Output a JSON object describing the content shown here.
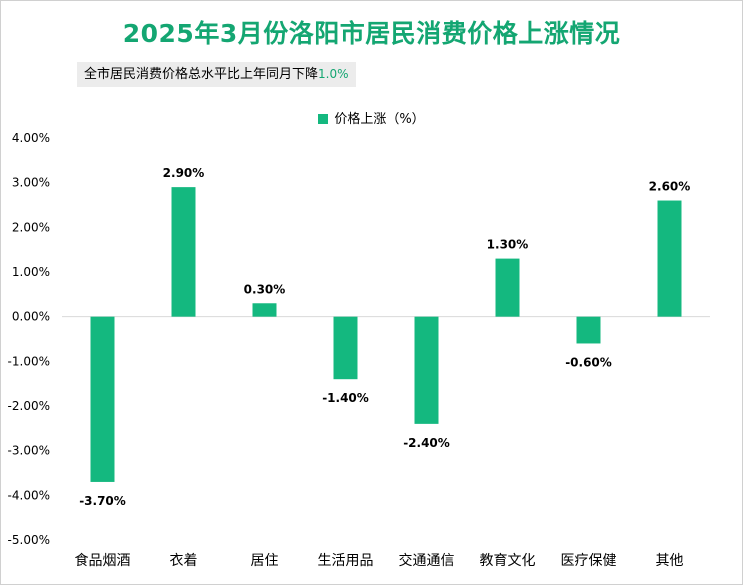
{
  "title": "2025年3月份洛阳市居民消费价格上涨情况",
  "subtitle": {
    "text": "全市居民消费价格总水平比上年同月下降",
    "value": "1.0%"
  },
  "colors": {
    "bar": "#14b87f",
    "title": "#14a672"
  },
  "chart_data": {
    "type": "bar",
    "categories": [
      "食品烟酒",
      "衣着",
      "居住",
      "生活用品",
      "交通通信",
      "教育文化",
      "医疗保健",
      "其他"
    ],
    "series": [
      {
        "name": "价格上涨（%）",
        "values": [
          -3.7,
          2.9,
          0.3,
          -1.4,
          -2.4,
          1.3,
          -0.6,
          2.6
        ]
      }
    ],
    "data_labels": [
      "-3.70%",
      "2.90%",
      "0.30%",
      "-1.40%",
      "-2.40%",
      "1.30%",
      "-0.60%",
      "2.60%"
    ],
    "yticks": [
      "4.00%",
      "3.00%",
      "2.00%",
      "1.00%",
      "0.00%",
      "-1.00%",
      "-2.00%",
      "-3.00%",
      "-4.00%",
      "-5.00%"
    ],
    "ylim": [
      -5,
      4
    ],
    "grid": false,
    "legend_position": "top-center"
  }
}
